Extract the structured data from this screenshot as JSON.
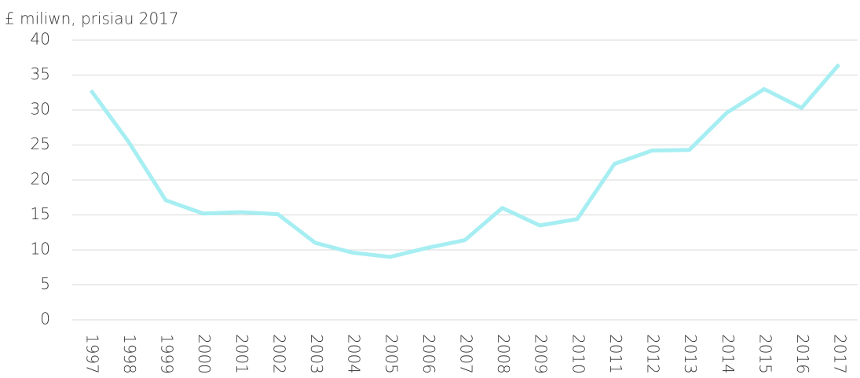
{
  "chart_data": {
    "type": "line",
    "title": "£ miliwn, prisiau 2017",
    "categories": [
      "1997",
      "1998",
      "1999",
      "2000",
      "2001",
      "2002",
      "2003",
      "2004",
      "2005",
      "2006",
      "2007",
      "2008",
      "2009",
      "2010",
      "2011",
      "2012",
      "2013",
      "2014",
      "2015",
      "2016",
      "2017"
    ],
    "series": [
      {
        "color": "#a6eef2",
        "values": [
          32.8,
          25.5,
          17.1,
          15.2,
          15.4,
          15.1,
          11.0,
          9.6,
          9.0,
          10.3,
          11.4,
          16.0,
          13.5,
          14.4,
          22.3,
          24.2,
          24.3,
          29.6,
          33.0,
          30.3,
          36.5
        ]
      }
    ],
    "ylim": [
      0,
      40
    ],
    "yticks": [
      0,
      5,
      10,
      15,
      20,
      25,
      30,
      35,
      40
    ],
    "grid": true
  }
}
